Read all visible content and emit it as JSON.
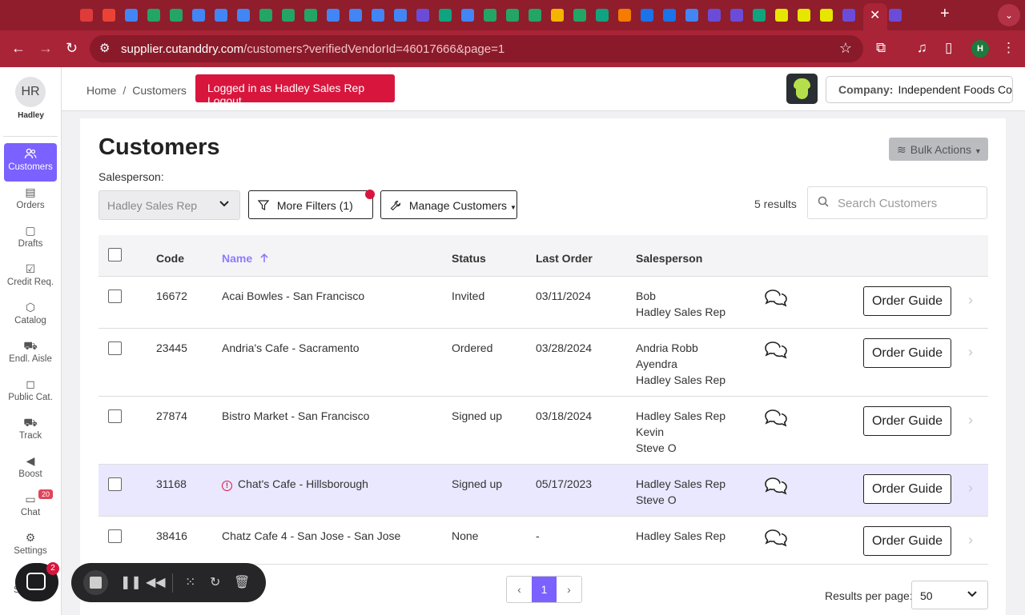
{
  "browser": {
    "url_host": "supplier.cutanddry.com",
    "url_path": "/customers?verifiedVendorId=46017666&page=1",
    "profile_initial": "H",
    "favicons": [
      "#e03b3b",
      "#ea4335",
      "#4285f4",
      "#23a566",
      "#23a566",
      "#4285f4",
      "#4285f4",
      "#4285f4",
      "#23a566",
      "#23a566",
      "#23a566",
      "#4285f4",
      "#4285f4",
      "#4285f4",
      "#4285f4",
      "#6b4cd8",
      "#10a37f",
      "#4285f4",
      "#23a566",
      "#23a566",
      "#23a566",
      "#f4b400",
      "#23a566",
      "#10a37f",
      "#f57c00",
      "#1a73e8",
      "#1a73e8",
      "#4285f4",
      "#6b4cd8",
      "#6b4cd8",
      "#10a37f",
      "#e6e600",
      "#e6e600",
      "#e6e600",
      "#6b4cd8",
      "#6b4cd8"
    ]
  },
  "sidebar": {
    "avatar_initials": "HR",
    "user_name": "Hadley",
    "items": [
      {
        "label": "Customers",
        "icon": "users-icon"
      },
      {
        "label": "Orders",
        "icon": "document-icon"
      },
      {
        "label": "Drafts",
        "icon": "clipboard-icon"
      },
      {
        "label": "Credit Req.",
        "icon": "checklist-icon"
      },
      {
        "label": "Catalog",
        "icon": "box-icon"
      },
      {
        "label": "Endl. Aisle",
        "icon": "cart-icon"
      },
      {
        "label": "Public Cat.",
        "icon": "bag-icon"
      },
      {
        "label": "Track",
        "icon": "truck-icon"
      },
      {
        "label": "Boost",
        "icon": "megaphone-icon"
      },
      {
        "label": "Chat",
        "icon": "chat-icon"
      },
      {
        "label": "Settings",
        "icon": "gear-icon"
      }
    ],
    "chat_badge": "20",
    "partial_label": "S"
  },
  "header": {
    "breadcrumb_home": "Home",
    "breadcrumb_sep": "/",
    "breadcrumb_current": "Customers",
    "logged_in_text": "Logged in as Hadley Sales Rep ",
    "logout_label": "Logout",
    "company_label": "Company:",
    "company_value": "Independent Foods Co"
  },
  "page": {
    "title": "Customers",
    "bulk_actions_label": "Bulk Actions",
    "salesperson_label": "Salesperson:",
    "salesperson_value": "Hadley Sales Rep",
    "more_filters_label": "More Filters",
    "more_filters_count": "(1)",
    "manage_customers_label": "Manage Customers",
    "results_text": "5 results",
    "search_placeholder": "Search Customers"
  },
  "table": {
    "columns": {
      "code": "Code",
      "name": "Name",
      "status": "Status",
      "last_order": "Last Order",
      "salesperson": "Salesperson"
    },
    "order_guide_label": "Order Guide",
    "rows": [
      {
        "code": "16672",
        "name": "Acai Bowles - San Francisco",
        "status": "Invited",
        "last_order": "03/11/2024",
        "salespeople": [
          "Bob",
          "Hadley Sales Rep"
        ],
        "warning": false
      },
      {
        "code": "23445",
        "name": "Andria's Cafe - Sacramento",
        "status": "Ordered",
        "last_order": "03/28/2024",
        "salespeople": [
          "Andria Robb",
          "Ayendra",
          "Hadley Sales Rep"
        ],
        "warning": false
      },
      {
        "code": "27874",
        "name": "Bistro Market - San Francisco",
        "status": "Signed up",
        "last_order": "03/18/2024",
        "salespeople": [
          "Hadley Sales Rep",
          "Kevin",
          "Steve O"
        ],
        "warning": false
      },
      {
        "code": "31168",
        "name": "Chat's Cafe - Hillsborough",
        "status": "Signed up",
        "last_order": "05/17/2023",
        "salespeople": [
          "Hadley Sales Rep",
          "Steve O"
        ],
        "warning": true
      },
      {
        "code": "38416",
        "name": "Chatz Cafe 4 - San Jose - San Jose",
        "status": "None",
        "last_order": "-",
        "salespeople": [
          "Hadley Sales Rep"
        ],
        "warning": false
      }
    ]
  },
  "pagination": {
    "current_page": "1",
    "results_per_page_label": "Results per page:",
    "results_per_page_value": "50"
  },
  "widgets": {
    "chat_badge": "2"
  },
  "colors": {
    "accent": "#7b61ff",
    "brand_red": "#d8163d",
    "chrome": "#a82436"
  }
}
